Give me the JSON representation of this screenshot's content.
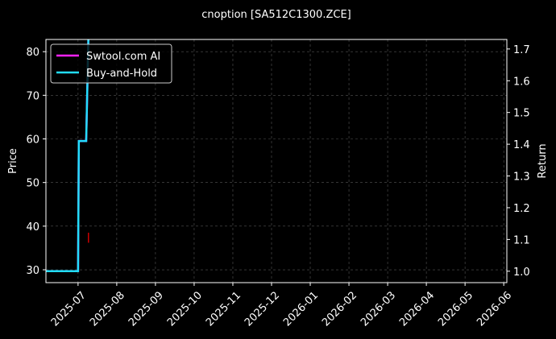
{
  "chart_data": {
    "type": "line",
    "title": "cnoption [SA512C1300.ZCE]",
    "y_label": "Price",
    "y2_label": "Return",
    "xlim": [
      -0.83,
      11.08
    ],
    "xticks": [
      {
        "value": 0,
        "label": "2025-07"
      },
      {
        "value": 1,
        "label": "2025-08"
      },
      {
        "value": 2,
        "label": "2025-09"
      },
      {
        "value": 3,
        "label": "2025-10"
      },
      {
        "value": 4,
        "label": "2025-11"
      },
      {
        "value": 5,
        "label": "2025-12"
      },
      {
        "value": 6,
        "label": "2026-01"
      },
      {
        "value": 7,
        "label": "2026-02"
      },
      {
        "value": 8,
        "label": "2026-03"
      },
      {
        "value": 9,
        "label": "2026-04"
      },
      {
        "value": 10,
        "label": "2026-05"
      },
      {
        "value": 11,
        "label": "2026-06"
      }
    ],
    "ylim": [
      27.05,
      82.8
    ],
    "yticks": [
      30,
      40,
      50,
      60,
      70,
      80
    ],
    "y2lim": [
      0.964,
      1.73
    ],
    "y2ticks": [
      {
        "value": 1.0,
        "label": "1.0"
      },
      1.1,
      1.2,
      1.3,
      1.4,
      1.5,
      1.6,
      1.7
    ],
    "grid": true,
    "legend": "upper-left",
    "series": [
      {
        "name": "Swtool.com AI",
        "color": "#ff22ff",
        "axis": "y2",
        "x": [
          -0.83,
          0.0,
          0.02,
          0.21,
          0.27
        ],
        "values": [
          1.0,
          1.0,
          1.41,
          1.41,
          1.75
        ]
      },
      {
        "name": "Buy-and-Hold",
        "color": "#22ddff",
        "axis": "y2",
        "x": [
          -0.83,
          0.0,
          0.02,
          0.21,
          0.27
        ],
        "values": [
          1.0,
          1.0,
          1.41,
          1.41,
          1.75
        ]
      }
    ],
    "price_bars": {
      "color": "#ff0000",
      "x": [
        0.27
      ],
      "low": [
        36.2
      ],
      "high": [
        38.5
      ]
    }
  }
}
